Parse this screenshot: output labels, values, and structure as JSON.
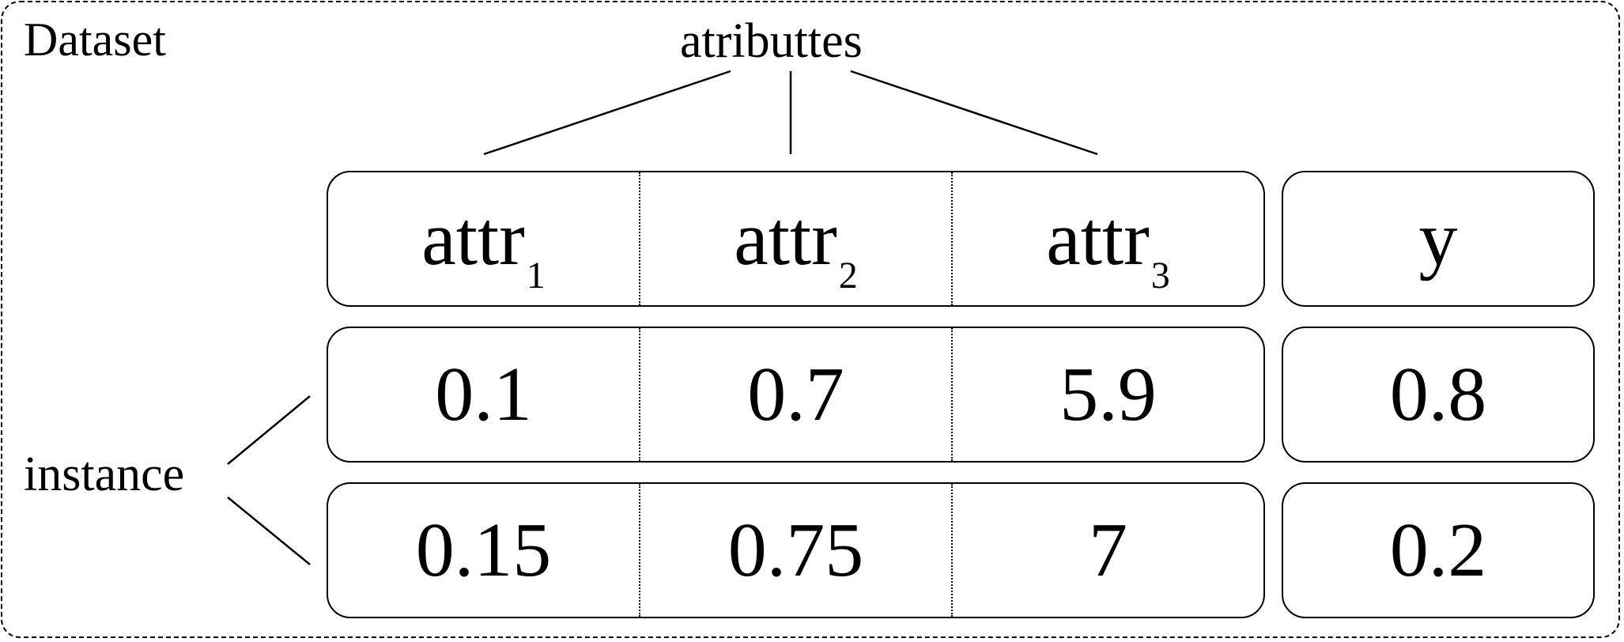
{
  "labels": {
    "dataset": "Dataset",
    "attributes": "atributtes",
    "instance": "instance"
  },
  "header": {
    "attrs": [
      {
        "name": "attr",
        "sub": "1"
      },
      {
        "name": "attr",
        "sub": "2"
      },
      {
        "name": "attr",
        "sub": "3"
      }
    ],
    "target": "y"
  },
  "rows": [
    {
      "values": [
        "0.1",
        "0.7",
        "5.9"
      ],
      "y": "0.8"
    },
    {
      "values": [
        "0.15",
        "0.75",
        "7"
      ],
      "y": "0.2"
    }
  ]
}
